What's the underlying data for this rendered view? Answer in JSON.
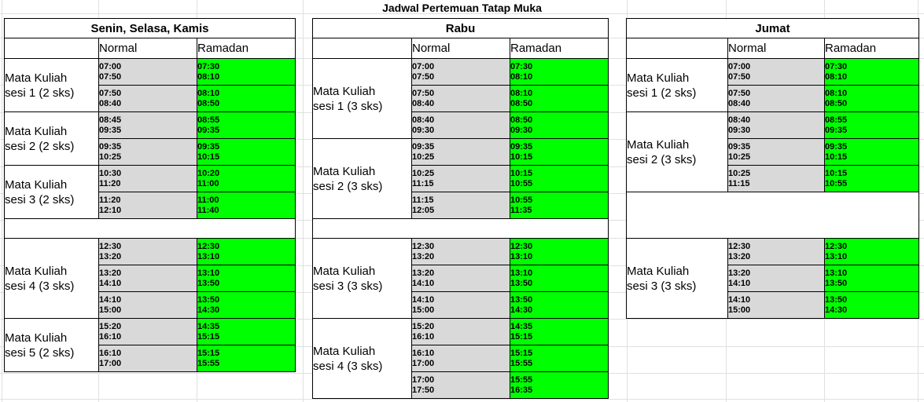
{
  "title": "Jadwal Pertemuan Tatap Muka",
  "columns": {
    "normal": "Normal",
    "ramadan": "Ramadan"
  },
  "colors": {
    "normal_bg": "#d9d9d9",
    "ramadan_bg": "#00ff00",
    "border": "#000000",
    "gridline": "#e0e0e0"
  },
  "tables": [
    {
      "id": "senin-selasa-kamis",
      "day": "Senin, Selasa, Kamis",
      "sessions": [
        {
          "label": "Mata Kuliah\nsesi 1 (2 sks)",
          "slots": [
            {
              "normal": "07:00\n07:50",
              "ramadan": "07:30\n08:10"
            },
            {
              "normal": "07:50\n08:40",
              "ramadan": "08:10\n08:50"
            }
          ]
        },
        {
          "label": "Mata Kuliah\nsesi 2 (2 sks)",
          "slots": [
            {
              "normal": "08:45\n09:35",
              "ramadan": "08:55\n09:35"
            },
            {
              "normal": "09:35\n10:25",
              "ramadan": "09:35\n10:15"
            }
          ]
        },
        {
          "label": "Mata Kuliah\nsesi 3 (2 sks)",
          "slots": [
            {
              "normal": "10:30\n11:20",
              "ramadan": "10:20\n11:00"
            },
            {
              "normal": "11:20\n12:10",
              "ramadan": "11:00\n11:40"
            }
          ]
        },
        {
          "break": true
        },
        {
          "label": "Mata Kuliah\nsesi 4 (3 sks)",
          "slots": [
            {
              "normal": "12:30\n13:20",
              "ramadan": "12:30\n13:10"
            },
            {
              "normal": "13:20\n14:10",
              "ramadan": "13:10\n13:50"
            },
            {
              "normal": "14:10\n15:00",
              "ramadan": "13:50\n14:30"
            }
          ]
        },
        {
          "label": "Mata Kuliah\nsesi 5 (2 sks)",
          "slots": [
            {
              "normal": "15:20\n16:10",
              "ramadan": "14:35\n15:15"
            },
            {
              "normal": "16:10\n17:00",
              "ramadan": "15:15\n15:55"
            }
          ]
        }
      ]
    },
    {
      "id": "rabu",
      "day": "Rabu",
      "sessions": [
        {
          "label": "Mata Kuliah\nsesi 1 (3 sks)",
          "slots": [
            {
              "normal": "07:00\n07:50",
              "ramadan": "07:30\n08:10"
            },
            {
              "normal": "07:50\n08:40",
              "ramadan": "08:10\n08:50"
            },
            {
              "normal": "08:40\n09:30",
              "ramadan": "08:50\n09:30"
            }
          ]
        },
        {
          "label": "Mata Kuliah\nsesi 2 (3 sks)",
          "slots": [
            {
              "normal": "09:35\n10:25",
              "ramadan": "09:35\n10:15"
            },
            {
              "normal": "10:25\n11:15",
              "ramadan": "10:15\n10:55"
            },
            {
              "normal": "11:15\n12:05",
              "ramadan": "10:55\n11:35"
            }
          ]
        },
        {
          "break": true
        },
        {
          "label": "Mata Kuliah\nsesi 3 (3 sks)",
          "slots": [
            {
              "normal": "12:30\n13:20",
              "ramadan": "12:30\n13:10"
            },
            {
              "normal": "13:20\n14:10",
              "ramadan": "13:10\n13:50"
            },
            {
              "normal": "14:10\n15:00",
              "ramadan": "13:50\n14:30"
            }
          ]
        },
        {
          "label": "Mata Kuliah\nsesi 4 (3 sks)",
          "slots": [
            {
              "normal": "15:20\n16:10",
              "ramadan": "14:35\n15:15"
            },
            {
              "normal": "16:10\n17:00",
              "ramadan": "15:15\n15:55"
            },
            {
              "normal": "17:00\n17:50",
              "ramadan": "15:55\n16:35"
            }
          ]
        }
      ]
    },
    {
      "id": "jumat",
      "day": "Jumat",
      "sessions": [
        {
          "label": "Mata Kuliah\nsesi 1 (2 sks)",
          "slots": [
            {
              "normal": "07:00\n07:50",
              "ramadan": "07:30\n08:10"
            },
            {
              "normal": "07:50\n08:40",
              "ramadan": "08:10\n08:50"
            }
          ]
        },
        {
          "label": "Mata Kuliah\nsesi 2 (3 sks)",
          "slots": [
            {
              "normal": "08:40\n09:30",
              "ramadan": "08:55\n09:35"
            },
            {
              "normal": "09:35\n10:25",
              "ramadan": "09:35\n10:15"
            },
            {
              "normal": "10:25\n11:15",
              "ramadan": "10:15\n10:55"
            }
          ]
        },
        {
          "break": true
        },
        {
          "label": "Mata Kuliah\nsesi 3 (3 sks)",
          "slots": [
            {
              "normal": "12:30\n13:20",
              "ramadan": "12:30\n13:10"
            },
            {
              "normal": "13:20\n14:10",
              "ramadan": "13:10\n13:50"
            },
            {
              "normal": "14:10\n15:00",
              "ramadan": "13:50\n14:30"
            }
          ]
        }
      ]
    }
  ]
}
